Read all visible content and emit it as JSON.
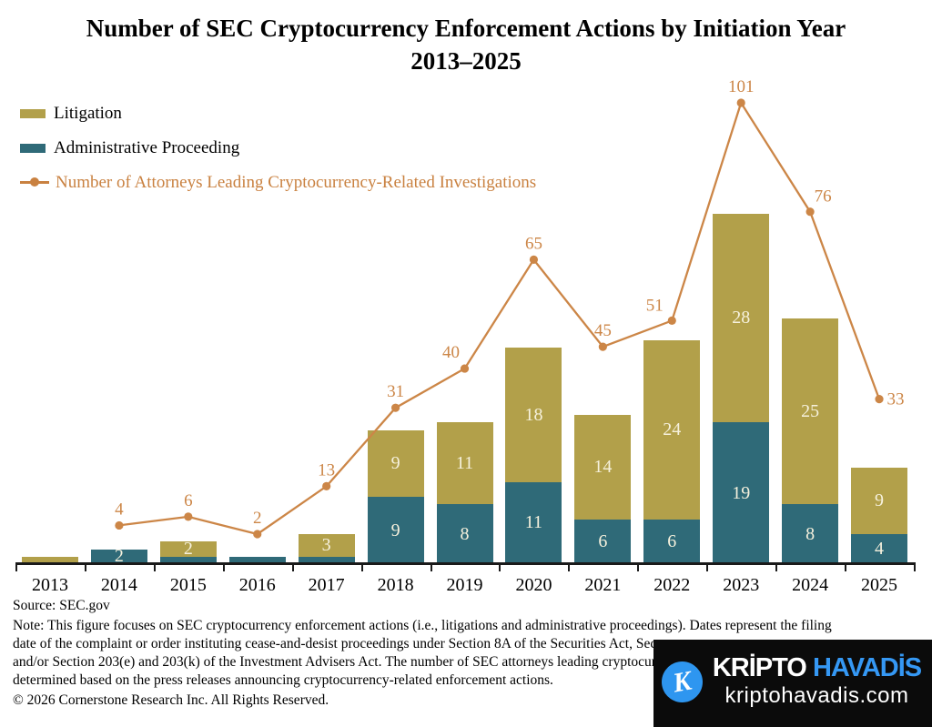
{
  "title": {
    "line1": "Number of SEC Cryptocurrency Enforcement Actions by Initiation Year",
    "line2": "2013–2025"
  },
  "legend": {
    "items": [
      {
        "label": "Litigation",
        "color": "#b2a04a",
        "marker": "swatch"
      },
      {
        "label": "Administrative Proceeding",
        "color": "#2f6a78",
        "marker": "swatch"
      },
      {
        "label": "Number of Attorneys Leading Cryptocurrency-Related Investigations",
        "color": "#c98140",
        "marker": "line-dot"
      }
    ]
  },
  "chart_data": {
    "type": "bar",
    "subtype": "stacked-bars-with-line-overlay",
    "title": "Number of SEC Cryptocurrency Enforcement Actions by Initiation Year 2013–2025",
    "categories": [
      "2013",
      "2014",
      "2015",
      "2016",
      "2017",
      "2018",
      "2019",
      "2020",
      "2021",
      "2022",
      "2023",
      "2024",
      "2025"
    ],
    "series": [
      {
        "name": "Administrative Proceeding",
        "type": "bar",
        "stack_order": 0,
        "color": "#2f6a78",
        "values": [
          0,
          2,
          1,
          1,
          1,
          9,
          8,
          11,
          6,
          6,
          19,
          8,
          4
        ]
      },
      {
        "name": "Litigation",
        "type": "bar",
        "stack_order": 1,
        "color": "#b2a04a",
        "values": [
          1,
          0,
          2,
          0,
          3,
          9,
          11,
          18,
          14,
          24,
          28,
          25,
          9
        ]
      },
      {
        "name": "Number of Attorneys Leading Cryptocurrency-Related Investigations",
        "type": "line",
        "color": "#cc8647",
        "values": [
          null,
          4,
          6,
          2,
          13,
          31,
          40,
          65,
          45,
          51,
          101,
          76,
          33
        ]
      }
    ],
    "bar_label_color": "#f6f1dd",
    "bar_label_min_value": 2,
    "line_label_offsets": {
      "2019": [
        -15,
        -12
      ],
      "2022": [
        -19,
        -11
      ],
      "2024": [
        14,
        -11
      ],
      "2025": [
        18,
        6
      ]
    },
    "axis_color": "#1a1a1a",
    "grid": false,
    "y_axis_visible": false,
    "legend_position": "top-left"
  },
  "footer": {
    "source": "Source: SEC.gov",
    "note_lines": [
      "Note: This figure focuses on SEC cryptocurrency enforcement actions (i.e., litigations and administrative proceedings). Dates represent the filing",
      "date of the complaint or order instituting cease-and-desist proceedings under Section 8A of the Securities Act, Sec",
      "and/or Section 203(e) and 203(k) of the Investment Advisers Act. The number of SEC attorneys leading cryptocur",
      "determined based on the press releases announcing cryptocurrency-related enforcement actions."
    ],
    "copyright": "© 2026 Cornerstone Research Inc. All Rights Reserved."
  },
  "watermark": {
    "icon_letter": "K",
    "brand_word1": "KRİPTO",
    "brand_word2": "HAVADİS",
    "domain": "kriptohavadis.com",
    "colors": {
      "background": "#0b0b0b",
      "accent_blue": "#3598f4",
      "icon_circle": "#2e96f0",
      "text": "#ffffff"
    }
  }
}
